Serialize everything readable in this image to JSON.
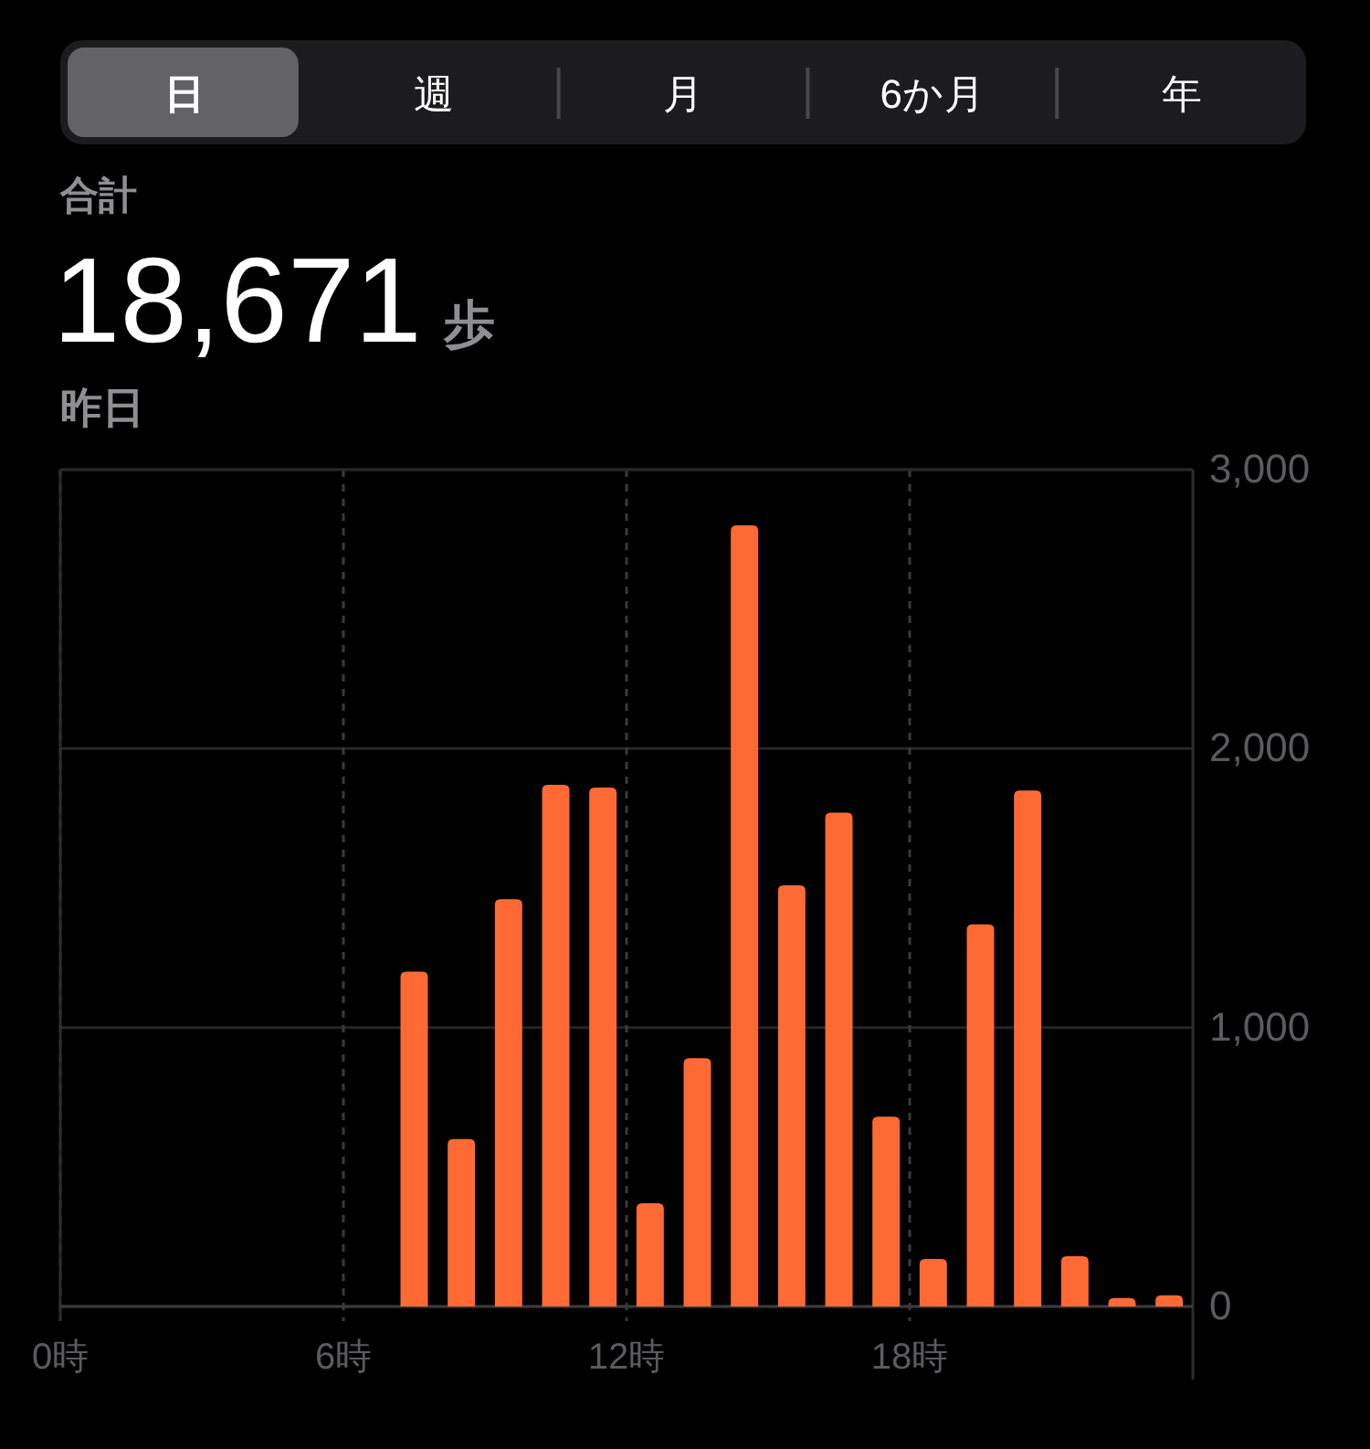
{
  "chart_data": {
    "type": "histogram",
    "title": "18,671 歩",
    "subtitle": "昨日",
    "annotations": [
      "合計",
      "日",
      "週",
      "月",
      "6か月",
      "年"
    ],
    "bins": [
      7,
      8,
      9,
      10,
      11,
      12,
      13,
      14,
      15,
      16,
      17,
      18,
      19,
      20,
      21,
      22,
      23,
      24
    ],
    "values": [
      1200,
      600,
      1460,
      1870,
      1860,
      370,
      890,
      2800,
      1510,
      1770,
      680,
      170,
      1370,
      1850,
      180,
      30,
      40
    ],
    "color": "#ff6a34",
    "xlim": [
      0,
      24
    ],
    "xticks": [
      {
        "value": 0,
        "label": "0時"
      },
      {
        "value": 6,
        "label": "6時"
      },
      {
        "value": 12,
        "label": "12時"
      },
      {
        "value": 18,
        "label": "18時"
      }
    ],
    "ylim": [
      0,
      3000
    ],
    "yticks": [
      0,
      {
        "value": 1000,
        "label": "1,000"
      },
      {
        "value": 2000,
        "label": "2,000"
      },
      {
        "value": 3000,
        "label": "3,000"
      }
    ],
    "grid": true
  }
}
